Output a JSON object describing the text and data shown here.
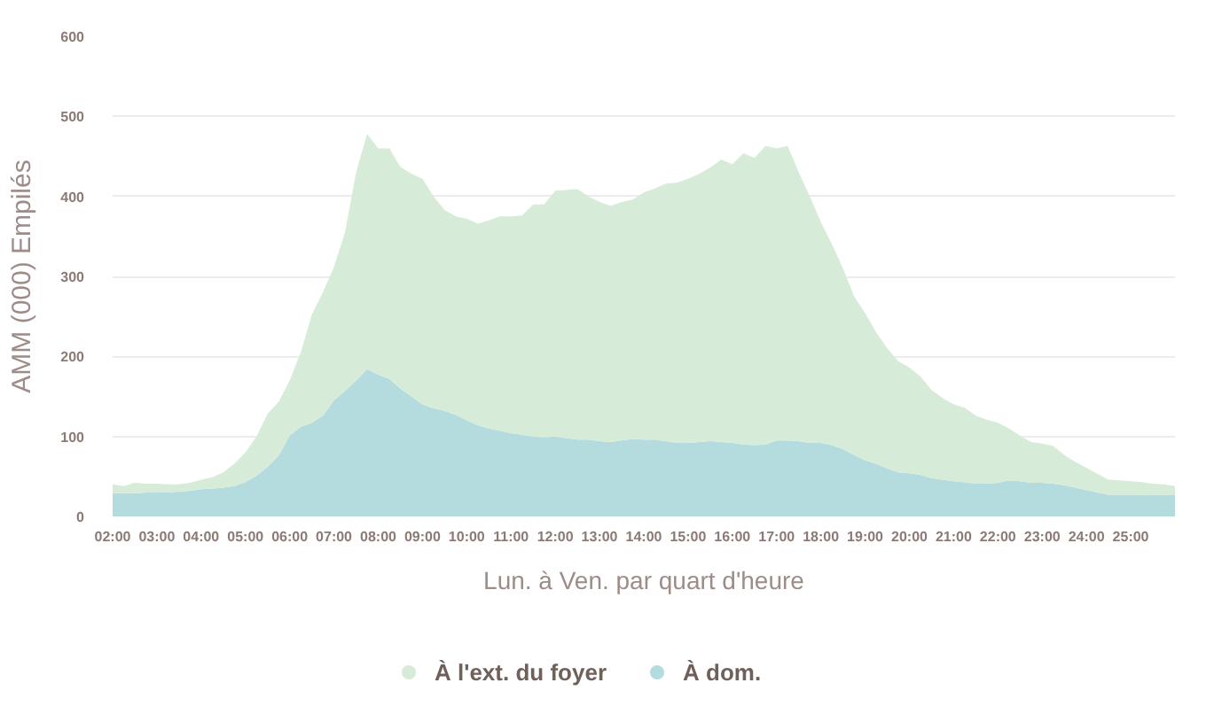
{
  "chart_data": {
    "type": "area",
    "stacked": true,
    "xlabel": "Lun. à Ven. par quart d'heure",
    "ylabel": "AMM (000) Empilés",
    "xlim": [
      2,
      26
    ],
    "ylim": [
      0,
      600
    ],
    "xticks": [
      {
        "value": 2,
        "label": "02:00"
      },
      {
        "value": 3,
        "label": "03:00"
      },
      {
        "value": 4,
        "label": "04:00"
      },
      {
        "value": 5,
        "label": "05:00"
      },
      {
        "value": 6,
        "label": "06:00"
      },
      {
        "value": 7,
        "label": "07:00"
      },
      {
        "value": 8,
        "label": "08:00"
      },
      {
        "value": 9,
        "label": "09:00"
      },
      {
        "value": 10,
        "label": "10:00"
      },
      {
        "value": 11,
        "label": "11:00"
      },
      {
        "value": 12,
        "label": "12:00"
      },
      {
        "value": 13,
        "label": "13:00"
      },
      {
        "value": 14,
        "label": "14:00"
      },
      {
        "value": 15,
        "label": "15:00"
      },
      {
        "value": 16,
        "label": "16:00"
      },
      {
        "value": 17,
        "label": "17:00"
      },
      {
        "value": 18,
        "label": "18:00"
      },
      {
        "value": 19,
        "label": "19:00"
      },
      {
        "value": 20,
        "label": "20:00"
      },
      {
        "value": 21,
        "label": "21:00"
      },
      {
        "value": 22,
        "label": "22:00"
      },
      {
        "value": 23,
        "label": "23:00"
      },
      {
        "value": 24,
        "label": "24:00"
      },
      {
        "value": 25,
        "label": "25:00"
      }
    ],
    "yticks": [
      0,
      100,
      200,
      300,
      400,
      500,
      600
    ],
    "grid": "y",
    "legend": "bottom",
    "x": [
      2,
      2.25,
      2.5,
      2.75,
      3,
      3.25,
      3.5,
      3.75,
      4,
      4.25,
      4.5,
      4.75,
      5,
      5.25,
      5.5,
      5.75,
      6,
      6.25,
      6.5,
      6.75,
      7,
      7.25,
      7.5,
      7.75,
      8,
      8.25,
      8.5,
      8.75,
      9,
      9.25,
      9.5,
      9.75,
      10,
      10.25,
      10.5,
      10.75,
      11,
      11.25,
      11.5,
      11.75,
      12,
      12.25,
      12.5,
      12.75,
      13,
      13.25,
      13.5,
      13.75,
      14,
      14.25,
      14.5,
      14.75,
      15,
      15.25,
      15.5,
      15.75,
      16,
      16.25,
      16.5,
      16.75,
      17,
      17.25,
      17.5,
      17.75,
      18,
      18.25,
      18.5,
      18.75,
      19,
      19.25,
      19.5,
      19.75,
      20,
      20.25,
      20.5,
      20.75,
      21,
      21.25,
      21.5,
      21.75,
      22,
      22.25,
      22.5,
      22.75,
      23,
      23.25,
      23.5,
      23.75,
      24,
      24.25,
      24.5,
      24.75,
      25,
      25.25,
      25.5,
      25.75,
      26
    ],
    "series": [
      {
        "name": "À dom.",
        "color": "#b4dcdf",
        "values": [
          29,
          29,
          29,
          30,
          30,
          30,
          31,
          32,
          34,
          35,
          36,
          38,
          43,
          51,
          62,
          76,
          101,
          112,
          117,
          126,
          145,
          157,
          170,
          184,
          177,
          172,
          160,
          150,
          140,
          135,
          132,
          127,
          120,
          114,
          110,
          107,
          104,
          102,
          100,
          99,
          100,
          98,
          96,
          96,
          94,
          93,
          95,
          97,
          96,
          96,
          94,
          92,
          92,
          93,
          94,
          93,
          92,
          90,
          89,
          90,
          95,
          95,
          94,
          92,
          92,
          89,
          84,
          77,
          70,
          66,
          60,
          55,
          54,
          52,
          48,
          46,
          44,
          43,
          41,
          41,
          42,
          45,
          44,
          42,
          42,
          41,
          39,
          36,
          33,
          30,
          27,
          27,
          27,
          27,
          27,
          27,
          27
        ]
      },
      {
        "name": "À l'ext. du foyer",
        "color": "#d7ebd9",
        "values": [
          11,
          9,
          13,
          11,
          11,
          10,
          9,
          10,
          12,
          14,
          19,
          28,
          37,
          49,
          66,
          67,
          69,
          93,
          135,
          154,
          167,
          198,
          260,
          294,
          283,
          288,
          277,
          278,
          282,
          265,
          251,
          248,
          252,
          252,
          260,
          268,
          271,
          274,
          290,
          291,
          307,
          310,
          313,
          304,
          299,
          295,
          298,
          299,
          309,
          314,
          322,
          325,
          330,
          335,
          342,
          353,
          348,
          364,
          359,
          373,
          365,
          368,
          336,
          308,
          276,
          251,
          226,
          198,
          184,
          164,
          150,
          139,
          132,
          123,
          110,
          102,
          96,
          93,
          85,
          80,
          75,
          65,
          57,
          51,
          49,
          47,
          38,
          32,
          28,
          23,
          19,
          18,
          17,
          16,
          14,
          13,
          11
        ]
      }
    ]
  }
}
